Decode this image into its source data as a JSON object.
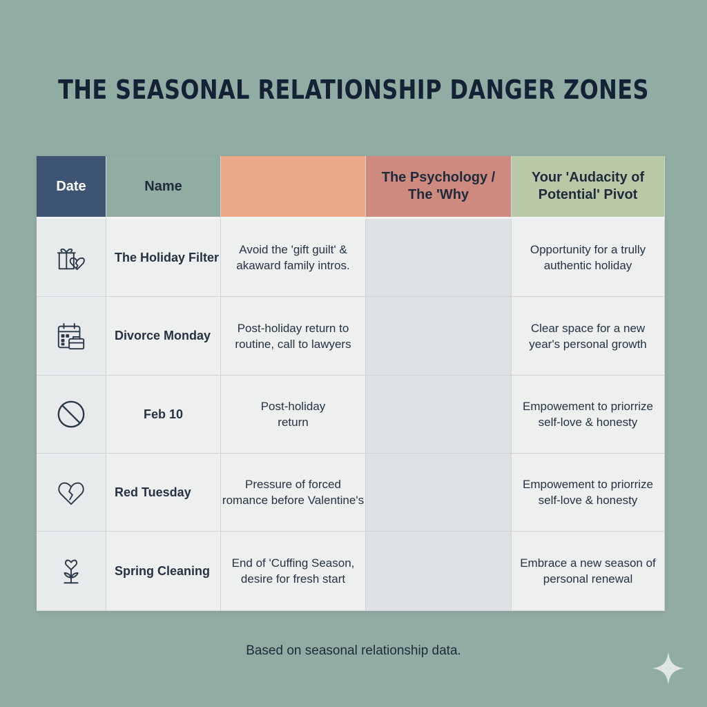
{
  "title": "THE SEASONAL RELATIONSHIP DANGER ZONES",
  "headers": {
    "date": "Date",
    "name": "Name",
    "col3": "",
    "psychology": "The Psychology / The 'Why",
    "pivot": "Your 'Audacity of Potential' Pivot"
  },
  "rows": [
    {
      "icon": "gift-broken-heart-icon",
      "name": "The Holiday Filter",
      "description": "Avoid the 'gift guilt' & akaward family intros.",
      "psychology": "",
      "pivot": "Opportunity for a trully authentic holiday"
    },
    {
      "icon": "calendar-briefcase-icon",
      "name": "Divorce Monday",
      "description": "Post-holiday return to routine, call to lawyers",
      "psychology": "",
      "pivot": "Clear space for a new year's personal growth"
    },
    {
      "icon": "prohibited-icon",
      "name": "Feb 10",
      "description": "Post-holiday return",
      "psychology": "",
      "pivot": "Empowement to priorrize self-love & honesty"
    },
    {
      "icon": "broken-heart-icon",
      "name": "Red Tuesday",
      "description": "Pressure of forced romance before Valentine's",
      "psychology": "",
      "pivot": "Empowement to priorrize self-love & honesty"
    },
    {
      "icon": "heart-flower-icon",
      "name": "Spring Cleaning",
      "description": "End of 'Cuffing Season, desire for fresh start",
      "psychology": "",
      "pivot": "Embrace a new season of personal renewal"
    }
  ],
  "footer": "Based on seasonal relationship data.",
  "colors": {
    "background": "#91aca3",
    "date_header": "#3d5472",
    "col3_header": "#eba98a",
    "psychology_header": "#cf8a80",
    "pivot_header": "#b9c9a7"
  }
}
